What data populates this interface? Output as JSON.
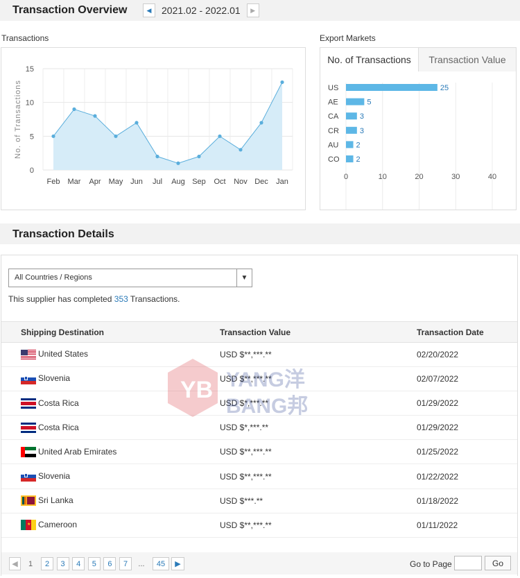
{
  "overview": {
    "title": "Transaction Overview",
    "period": "2021.02 - 2022.01",
    "prev_icon": "caret-left-icon",
    "next_icon": "caret-right-icon"
  },
  "transactions_panel": {
    "label": "Transactions"
  },
  "export_panel": {
    "label": "Export Markets",
    "tabs": [
      "No. of Transactions",
      "Transaction Value"
    ],
    "active_tab": 0
  },
  "chart_data": [
    {
      "type": "area",
      "ylabel": "No. of Transactions",
      "x": [
        "Feb",
        "Mar",
        "Apr",
        "May",
        "Jun",
        "Jul",
        "Aug",
        "Sep",
        "Oct",
        "Nov",
        "Dec",
        "Jan"
      ],
      "values": [
        5,
        9,
        8,
        5,
        7,
        2,
        1,
        2,
        5,
        3,
        7,
        13
      ],
      "ylim": [
        0,
        15
      ],
      "yticks": [
        0,
        5,
        10,
        15
      ],
      "grid": true,
      "color": "#5aaedc",
      "fill": "#d6ecf8"
    },
    {
      "type": "bar",
      "orientation": "horizontal",
      "categories": [
        "US",
        "AE",
        "CA",
        "CR",
        "AU",
        "CO"
      ],
      "values": [
        25,
        5,
        3,
        3,
        2,
        2
      ],
      "xlim": [
        0,
        40
      ],
      "xticks": [
        0,
        10,
        20,
        30,
        40
      ],
      "grid": true,
      "color": "#5db7e6"
    }
  ],
  "details": {
    "title": "Transaction Details",
    "filter_value": "All Countries / Regions",
    "summary_prefix": "This supplier has completed",
    "summary_count": "353",
    "summary_suffix": "Transactions.",
    "columns": [
      "Shipping Destination",
      "Transaction Value",
      "Transaction Date"
    ],
    "rows": [
      {
        "flag": "us-flag-icon",
        "country": "United States",
        "value": "USD $**,***.**",
        "date": "02/20/2022"
      },
      {
        "flag": "si-flag-icon",
        "country": "Slovenia",
        "value": "USD $**,***.**",
        "date": "02/07/2022"
      },
      {
        "flag": "cr-flag-icon",
        "country": "Costa Rica",
        "value": "USD $*,***.**",
        "date": "01/29/2022"
      },
      {
        "flag": "cr-flag-icon",
        "country": "Costa Rica",
        "value": "USD $*,***.**",
        "date": "01/29/2022"
      },
      {
        "flag": "ae-flag-icon",
        "country": "United Arab Emirates",
        "value": "USD $**,***.**",
        "date": "01/25/2022"
      },
      {
        "flag": "si-flag-icon",
        "country": "Slovenia",
        "value": "USD $**,***.**",
        "date": "01/22/2022"
      },
      {
        "flag": "lk-flag-icon",
        "country": "Sri Lanka",
        "value": "USD $***.**",
        "date": "01/18/2022"
      },
      {
        "flag": "cm-flag-icon",
        "country": "Cameroon",
        "value": "USD $**,***.**",
        "date": "01/11/2022"
      }
    ]
  },
  "pagination": {
    "current": "1",
    "pages": [
      "2",
      "3",
      "4",
      "5",
      "6",
      "7"
    ],
    "ellipsis": "...",
    "last": "45",
    "goto_label": "Go to Page",
    "go_button": "Go"
  },
  "watermark": {
    "text_line1": "YANG洋",
    "text_line2": "BANG邦"
  }
}
